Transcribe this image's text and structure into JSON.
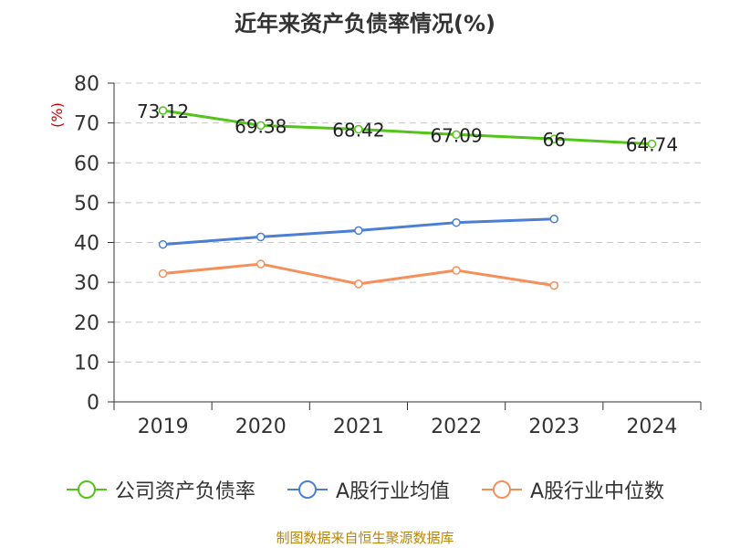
{
  "chart_title": "近年来资产负债率情况(%)",
  "source_text": "制图数据来自恒生聚源数据库",
  "chart_data": {
    "type": "line",
    "title": "近年来资产负债率情况(%)",
    "ylabel": "(%)",
    "xlabel": "",
    "ylim": [
      0,
      80
    ],
    "yticks": [
      0,
      10,
      20,
      30,
      40,
      50,
      60,
      70,
      80
    ],
    "categories": [
      "2019",
      "2020",
      "2021",
      "2022",
      "2023",
      "2024"
    ],
    "grid": true,
    "legend_position": "bottom",
    "series": [
      {
        "name": "公司资产负债率",
        "color": "#52c41a",
        "values": [
          73.12,
          69.38,
          68.42,
          67.09,
          66,
          64.74
        ],
        "labels": [
          "73.12",
          "69.38",
          "68.42",
          "67.09",
          "66",
          "64.74"
        ]
      },
      {
        "name": "A股行业均值",
        "color": "#4a7fd4",
        "values": [
          39.5,
          41.4,
          43.0,
          45.0,
          45.9,
          null
        ]
      },
      {
        "name": "A股行业中位数",
        "color": "#f5905a",
        "values": [
          32.2,
          34.6,
          29.6,
          33.0,
          29.2,
          null
        ]
      }
    ]
  }
}
